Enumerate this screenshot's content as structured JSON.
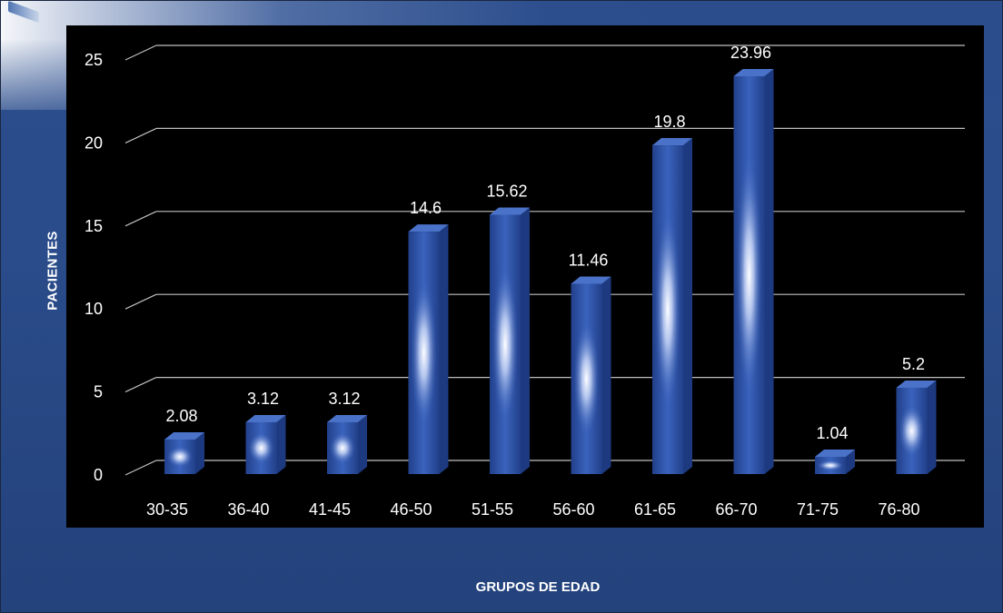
{
  "chart_data": {
    "type": "bar",
    "title": "",
    "xlabel": "GRUPOS DE EDAD",
    "ylabel": "PACIENTES",
    "categories": [
      "30-35",
      "36-40",
      "41-45",
      "46-50",
      "51-55",
      "56-60",
      "61-65",
      "66-70",
      "71-75",
      "76-80"
    ],
    "values": [
      2.08,
      3.12,
      3.12,
      14.6,
      15.62,
      11.46,
      19.8,
      23.96,
      1.04,
      5.2
    ],
    "data_labels": [
      "2.08",
      "3.12",
      "3.12",
      "14.6",
      "15.62",
      "11.46",
      "19.8",
      "23.96",
      "1.04",
      "5.2"
    ],
    "ylim": [
      0,
      25
    ],
    "yticks": [
      "0",
      "5",
      "10",
      "15",
      "20",
      "25"
    ],
    "grid": true,
    "legend": "none",
    "colors": {
      "bar": "#2f56ad",
      "bar_highlight": "#ffffff",
      "panel": "#000000",
      "background": "#2b4d8c",
      "gridline": "#bfbfbf",
      "text": "#ffffff"
    }
  }
}
